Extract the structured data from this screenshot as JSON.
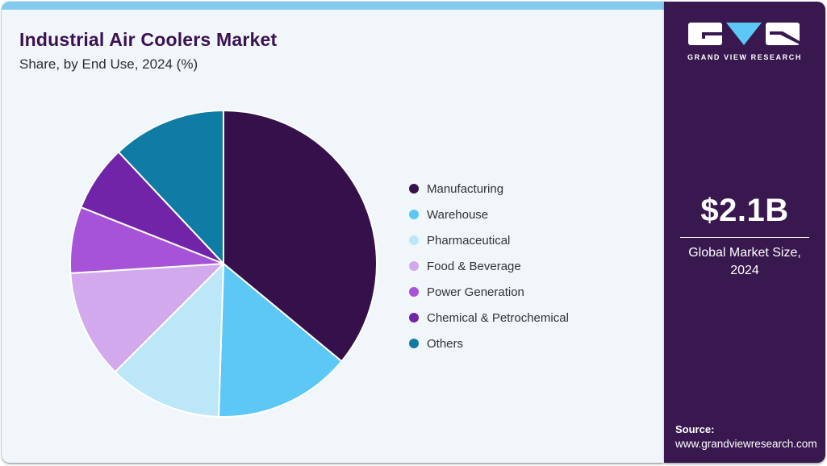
{
  "header": {
    "title": "Industrial Air Coolers Market",
    "subtitle": "Share, by End Use, 2024 (%)"
  },
  "chart_data": {
    "type": "pie",
    "title": "Industrial Air Coolers Market Share, by End Use, 2024 (%)",
    "unit": "percent",
    "start_angle_deg": 0,
    "direction": "clockwise",
    "values_are_estimated_from_pixels": true,
    "slices": [
      {
        "label": "Manufacturing",
        "value": 36,
        "color": "#36104a"
      },
      {
        "label": "Warehouse",
        "value": 14.5,
        "color": "#5bc8f5"
      },
      {
        "label": "Pharmaceutical",
        "value": 12,
        "color": "#bce7f8"
      },
      {
        "label": "Food & Beverage",
        "value": 11.5,
        "color": "#d2a9ec"
      },
      {
        "label": "Power Generation",
        "value": 7,
        "color": "#a653d8"
      },
      {
        "label": "Chemical & Petrochemical",
        "value": 7,
        "color": "#7124a8"
      },
      {
        "label": "Others",
        "value": 12,
        "color": "#0e7ca4"
      }
    ],
    "legend_position": "right",
    "data_labels_shown": false
  },
  "sidebar": {
    "brand_name": "GRAND VIEW RESEARCH",
    "market_size_value": "$2.1B",
    "market_size_caption": "Global Market Size, 2024",
    "source_label": "Source:",
    "source_url": "www.grandviewresearch.com"
  },
  "colors": {
    "accent_bar": "#82cbee",
    "card_bg": "#f0f6fa",
    "sidebar_bg": "#38184e",
    "title": "#3c1053",
    "text": "#333333",
    "logo_blue": "#5bc8f5"
  }
}
